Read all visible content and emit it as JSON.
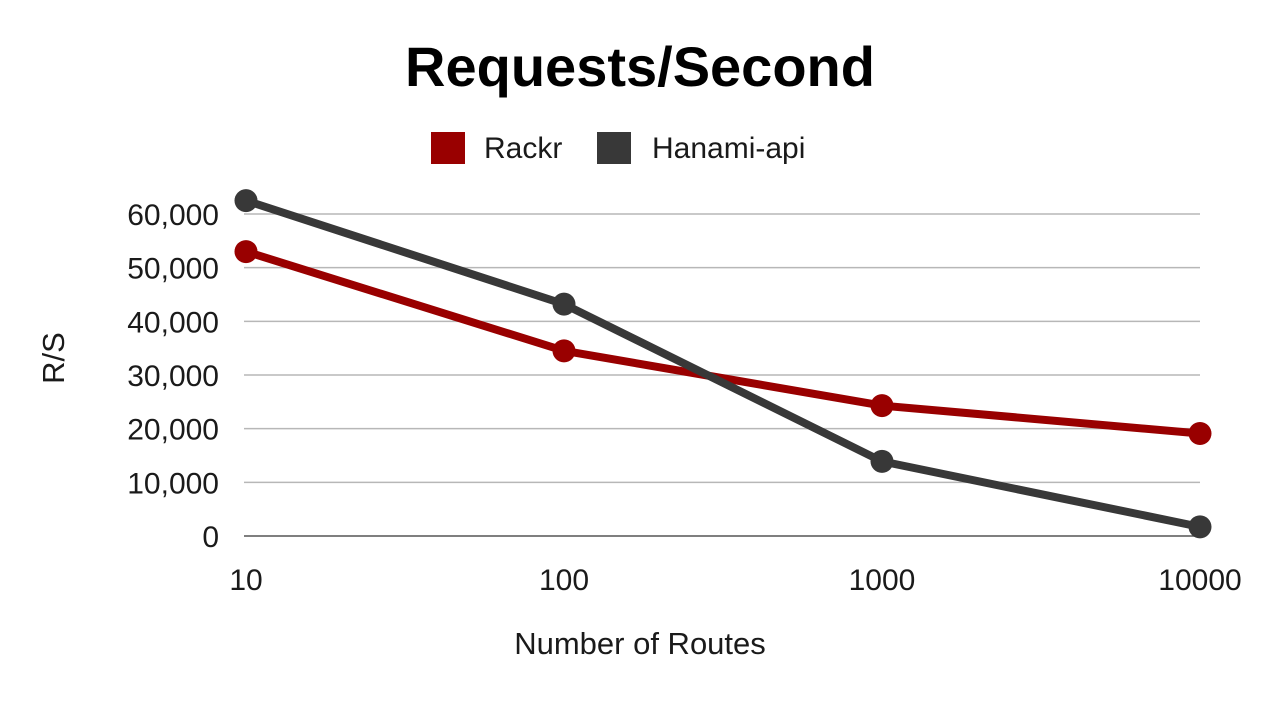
{
  "chart_data": {
    "type": "line",
    "title": "Requests/Second",
    "xlabel": "Number of Routes",
    "ylabel": "R/S",
    "x": [
      "10",
      "100",
      "1000",
      "10000"
    ],
    "x_scale": "log",
    "ylim": [
      0,
      60000
    ],
    "y_ticks": [
      "0",
      "10,000",
      "20,000",
      "30,000",
      "40,000",
      "50,000",
      "60,000"
    ],
    "grid": true,
    "legend_position": "top",
    "series": [
      {
        "name": "Rackr",
        "color": "#990000",
        "values": [
          53000,
          34500,
          24300,
          19100
        ]
      },
      {
        "name": "Hanami-api",
        "color": "#383838",
        "values": [
          62500,
          43200,
          13900,
          1700
        ]
      }
    ]
  }
}
